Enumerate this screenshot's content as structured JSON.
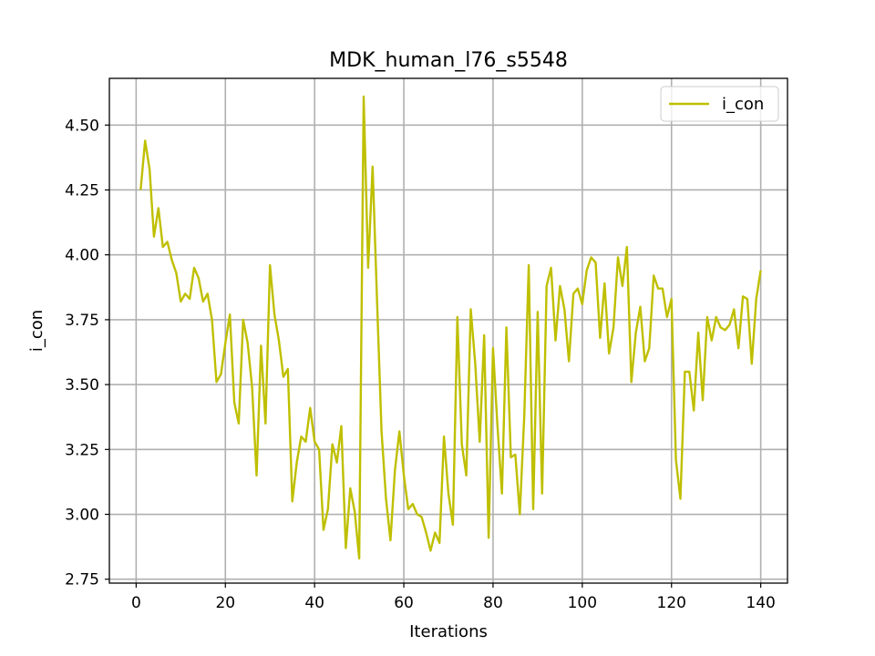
{
  "chart_data": {
    "type": "line",
    "title": "MDK_human_l76_s5548",
    "xlabel": "Iterations",
    "ylabel": "i_con",
    "xlim": [
      -6,
      146
    ],
    "ylim": [
      2.735,
      4.68
    ],
    "x_ticks": [
      0,
      20,
      40,
      60,
      80,
      100,
      120,
      140
    ],
    "y_ticks": [
      2.75,
      3.0,
      3.25,
      3.5,
      3.75,
      4.0,
      4.25,
      4.5
    ],
    "x_tick_labels": [
      "0",
      "20",
      "40",
      "60",
      "80",
      "100",
      "120",
      "140"
    ],
    "y_tick_labels": [
      "2.75",
      "3.00",
      "3.25",
      "3.50",
      "3.75",
      "4.00",
      "4.25",
      "4.50"
    ],
    "grid": true,
    "legend_position": "top-right",
    "series": [
      {
        "name": "i_con",
        "color": "#bfbf00",
        "x": [
          1,
          2,
          3,
          4,
          5,
          6,
          7,
          8,
          9,
          10,
          11,
          12,
          13,
          14,
          15,
          16,
          17,
          18,
          19,
          20,
          21,
          22,
          23,
          24,
          25,
          26,
          27,
          28,
          29,
          30,
          31,
          32,
          33,
          34,
          35,
          36,
          37,
          38,
          39,
          40,
          41,
          42,
          43,
          44,
          45,
          46,
          47,
          48,
          49,
          50,
          51,
          52,
          53,
          54,
          55,
          56,
          57,
          58,
          59,
          60,
          61,
          62,
          63,
          64,
          65,
          66,
          67,
          68,
          69,
          70,
          71,
          72,
          73,
          74,
          75,
          76,
          77,
          78,
          79,
          80,
          81,
          82,
          83,
          84,
          85,
          86,
          87,
          88,
          89,
          90,
          91,
          92,
          93,
          94,
          95,
          96,
          97,
          98,
          99,
          100,
          101,
          102,
          103,
          104,
          105,
          106,
          107,
          108,
          109,
          110,
          111,
          112,
          113,
          114,
          115,
          116,
          117,
          118,
          119,
          120,
          121,
          122,
          123,
          124,
          125,
          126,
          127,
          128,
          129,
          130,
          131,
          132,
          133,
          134,
          135,
          136,
          137,
          138,
          139,
          140
        ],
        "values": [
          4.25,
          4.44,
          4.33,
          4.07,
          4.18,
          4.03,
          4.05,
          3.98,
          3.93,
          3.82,
          3.85,
          3.83,
          3.95,
          3.91,
          3.82,
          3.85,
          3.75,
          3.51,
          3.54,
          3.66,
          3.77,
          3.43,
          3.35,
          3.75,
          3.66,
          3.49,
          3.15,
          3.65,
          3.35,
          3.96,
          3.77,
          3.67,
          3.53,
          3.56,
          3.05,
          3.2,
          3.3,
          3.28,
          3.41,
          3.28,
          3.25,
          2.94,
          3.02,
          3.27,
          3.2,
          3.34,
          2.87,
          3.1,
          3.01,
          2.83,
          4.61,
          3.95,
          4.34,
          3.82,
          3.32,
          3.06,
          2.9,
          3.17,
          3.32,
          3.15,
          3.02,
          3.04,
          3.0,
          2.99,
          2.93,
          2.86,
          2.93,
          2.89,
          3.3,
          3.08,
          2.96,
          3.76,
          3.27,
          3.15,
          3.79,
          3.58,
          3.28,
          3.69,
          2.91,
          3.64,
          3.34,
          3.08,
          3.72,
          3.22,
          3.23,
          3.0,
          3.38,
          3.96,
          3.02,
          3.78,
          3.08,
          3.88,
          3.95,
          3.67,
          3.88,
          3.79,
          3.59,
          3.85,
          3.87,
          3.81,
          3.94,
          3.99,
          3.97,
          3.68,
          3.89,
          3.62,
          3.72,
          3.99,
          3.88,
          4.03,
          3.51,
          3.7,
          3.8,
          3.59,
          3.64,
          3.92,
          3.87,
          3.87,
          3.76,
          3.83,
          3.21,
          3.06,
          3.55,
          3.55,
          3.4,
          3.7,
          3.44,
          3.76,
          3.67,
          3.76,
          3.72,
          3.71,
          3.73,
          3.79,
          3.64,
          3.84,
          3.83,
          3.58,
          3.83,
          3.94
        ]
      }
    ]
  }
}
